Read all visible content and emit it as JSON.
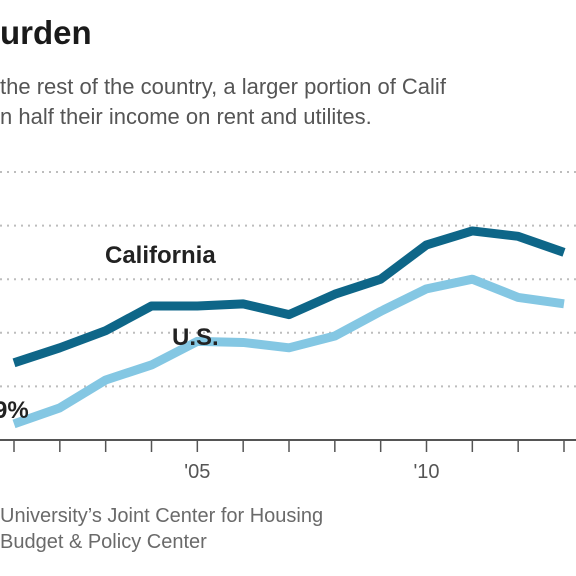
{
  "header": {
    "title": "urden",
    "subtitle_lines": [
      "the rest of the country, a larger portion of Calif",
      "n half their income on rent and utilites."
    ]
  },
  "source_lines": [
    "University’s Joint Center for Housing",
    "Budget & Policy Center"
  ],
  "colors": {
    "california": "#0e6688",
    "us": "#84c7e3",
    "grid": "#bdbdbd",
    "axis": "#555555"
  },
  "chart_data": {
    "type": "line",
    "x": [
      2001,
      2002,
      2003,
      2004,
      2005,
      2006,
      2007,
      2008,
      2009,
      2010,
      2011,
      2012,
      2013
    ],
    "xtick_labels": [
      "'05",
      "'10"
    ],
    "xtick_values": [
      2005,
      2010
    ],
    "ytick_label": "9%",
    "series": [
      {
        "name": "California",
        "values": [
          27.2,
          28.6,
          30.2,
          32.5,
          32.5,
          32.7,
          31.7,
          33.6,
          35.0,
          38.2,
          39.5,
          39.0,
          37.5
        ]
      },
      {
        "name": "U.S.",
        "values": [
          21.5,
          23.0,
          25.6,
          27.0,
          29.2,
          29.1,
          28.6,
          29.7,
          32.0,
          34.1,
          35.0,
          33.3,
          32.7
        ]
      }
    ],
    "grid": true
  }
}
